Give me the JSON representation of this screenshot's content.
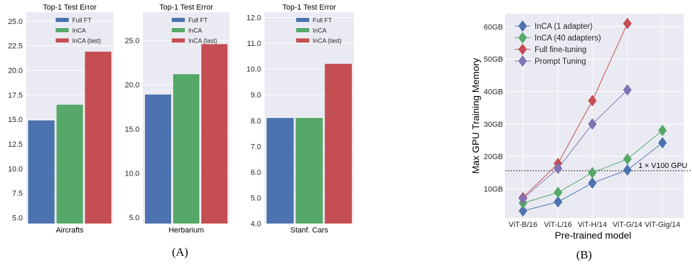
{
  "colors": {
    "full_ft": "#4c72b0",
    "inca": "#55a868",
    "inca_last": "#c44e52",
    "prompt": "#8172b2",
    "panel_bg": "#eaeaf2",
    "grid": "#ffffff"
  },
  "captions": {
    "a": "(A)",
    "b": "(B)"
  },
  "chart_data": [
    {
      "type": "bar",
      "title": "Top-1 Test Error",
      "categories": [
        "Aircrafts"
      ],
      "series": [
        {
          "name": "Full FT",
          "values": [
            14.9
          ]
        },
        {
          "name": "InCA",
          "values": [
            16.5
          ]
        },
        {
          "name": "InCA (last)",
          "values": [
            21.9
          ]
        }
      ],
      "ylim": [
        4.4,
        25.9
      ],
      "yticks": [
        5.0,
        7.5,
        10.0,
        12.5,
        15.0,
        17.5,
        20.0,
        22.5,
        25.0
      ],
      "legend": "top-right",
      "grid": true
    },
    {
      "type": "bar",
      "title": "Top-1 Test Error",
      "categories": [
        "Herbarium"
      ],
      "series": [
        {
          "name": "Full FT",
          "values": [
            18.9
          ]
        },
        {
          "name": "InCA",
          "values": [
            21.2
          ]
        },
        {
          "name": "InCA (last)",
          "values": [
            24.6
          ]
        }
      ],
      "ylim": [
        4.3,
        28.2
      ],
      "yticks": [
        5.0,
        10.0,
        15.0,
        20.0,
        25.0
      ],
      "legend": "top-right",
      "grid": true
    },
    {
      "type": "bar",
      "title": "Top-1 Test Error",
      "categories": [
        "Stanf. Cars"
      ],
      "series": [
        {
          "name": "Full FT",
          "values": [
            8.1
          ]
        },
        {
          "name": "InCA",
          "values": [
            8.1
          ]
        },
        {
          "name": "InCA (last)",
          "values": [
            10.2
          ]
        }
      ],
      "ylim": [
        4.0,
        12.2
      ],
      "yticks": [
        4.0,
        5.0,
        6.0,
        7.0,
        8.0,
        9.0,
        10.0,
        11.0,
        12.0
      ],
      "legend": "top-right",
      "grid": true
    },
    {
      "type": "line",
      "xlabel": "Pre-trained model",
      "ylabel": "Max GPU Training Memory",
      "x": [
        "ViT-B/16",
        "ViT-L/16",
        "ViT-H/14",
        "ViT-G/14",
        "ViT-Gig/14"
      ],
      "ytick_labels": [
        "10GB",
        "20GB",
        "30GB",
        "40GB",
        "50GB",
        "60GB"
      ],
      "yticks": [
        10,
        20,
        30,
        40,
        50,
        60
      ],
      "ylim": [
        1,
        64
      ],
      "series": [
        {
          "name": "InCA (1 adapter)",
          "values": [
            3.2,
            6.0,
            11.8,
            15.8,
            24.2
          ]
        },
        {
          "name": "InCA (40 adapters)",
          "values": [
            5.6,
            8.9,
            15.0,
            19.2,
            28.0
          ]
        },
        {
          "name": "Full fine-tuning",
          "values": [
            7.3,
            17.8,
            37.2,
            61.0,
            null
          ]
        },
        {
          "name": "Prompt Tuning",
          "values": [
            7.0,
            16.3,
            30.0,
            40.5,
            null
          ]
        }
      ],
      "annotations": [
        {
          "text": "1 × V100 GPU",
          "y": 15.6
        }
      ],
      "legend": "top-left",
      "grid": true
    }
  ]
}
